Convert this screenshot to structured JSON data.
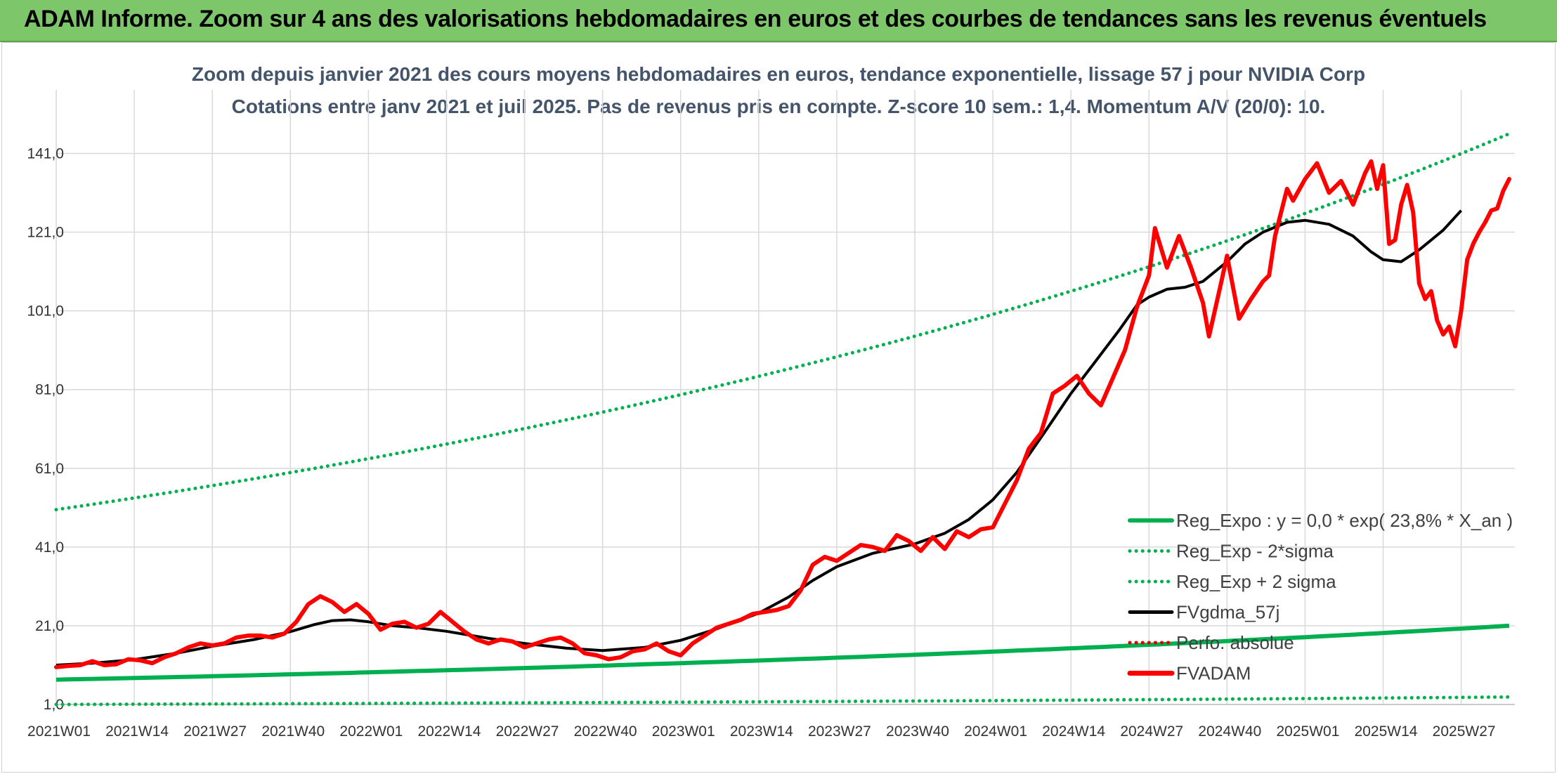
{
  "banner": {
    "title": "ADAM Informe. Zoom sur 4 ans des valorisations hebdomadaires en euros et des courbes de tendances sans les revenus éventuels"
  },
  "chart_data": {
    "type": "line",
    "title": "Zoom depuis janvier 2021 des cours moyens hebdomadaires en euros, tendance exponentielle, lissage 57 j pour NVIDIA Corp",
    "subtitle": "Cotations entre janv 2021 et juil 2025. Pas de revenus pris en compte. Z-score 10 sem.: 1,4. Momentum A/V (20/0): 10.",
    "ylim": [
      1,
      155
    ],
    "y_ticks": [
      "1,0",
      "21,0",
      "41,0",
      "61,0",
      "81,0",
      "101,0",
      "121,0",
      "141,0"
    ],
    "y_tick_values": [
      1,
      21,
      41,
      61,
      81,
      101,
      121,
      141
    ],
    "x_ticks": [
      "2021W01",
      "2021W14",
      "2021W27",
      "2021W40",
      "2022W01",
      "2022W14",
      "2022W27",
      "2022W40",
      "2023W01",
      "2023W14",
      "2023W27",
      "2023W40",
      "2024W01",
      "2024W14",
      "2024W27",
      "2024W40",
      "2025W01",
      "2025W14",
      "2025W27"
    ],
    "x_tick_weeks": [
      0,
      13,
      26,
      39,
      52,
      65,
      78,
      91,
      104,
      117,
      130,
      143,
      156,
      169,
      182,
      195,
      208,
      221,
      234
    ],
    "grid": true,
    "legend_position": "bottom-right",
    "colors": {
      "reg_expo": "#00b050",
      "reg_bands": "#00b050",
      "fvgdma": "#000000",
      "perfo": "#e00000",
      "fvadam": "#ff0000"
    },
    "series": [
      {
        "name": "Reg_Expo : y = 0,0 * exp( 23,8% *  X_an )",
        "style": "solid-green"
      },
      {
        "name": "Reg_Exp - 2*sigma",
        "style": "dotted-green"
      },
      {
        "name": "Reg_Exp + 2 sigma",
        "style": "dotted-green"
      },
      {
        "name": "FVgdma_57j",
        "style": "solid-black"
      },
      {
        "name": "Perfo. absolue",
        "style": "dotted-red"
      },
      {
        "name": "FVADAM",
        "style": "solid-red"
      }
    ],
    "trend_lines": {
      "reg_expo": {
        "start": 7.3,
        "end": 21.0
      },
      "reg_plus_2sigma": {
        "start": 50.5,
        "end": 146.0
      },
      "reg_minus_2sigma": {
        "start": 1.0,
        "end": 2.9
      }
    },
    "fvgdma_57j_points": [
      [
        0,
        11.0
      ],
      [
        6,
        11.5
      ],
      [
        13,
        12.4
      ],
      [
        20,
        14.0
      ],
      [
        26,
        15.8
      ],
      [
        33,
        17.5
      ],
      [
        39,
        19.5
      ],
      [
        43,
        21.3
      ],
      [
        46,
        22.3
      ],
      [
        49,
        22.5
      ],
      [
        52,
        22.0
      ],
      [
        56,
        21.0
      ],
      [
        60,
        20.5
      ],
      [
        65,
        19.6
      ],
      [
        72,
        17.8
      ],
      [
        78,
        16.5
      ],
      [
        85,
        15.3
      ],
      [
        91,
        14.7
      ],
      [
        98,
        15.5
      ],
      [
        104,
        17.3
      ],
      [
        110,
        20.2
      ],
      [
        117,
        24.2
      ],
      [
        122,
        28.3
      ],
      [
        126,
        32.5
      ],
      [
        130,
        36.0
      ],
      [
        136,
        39.4
      ],
      [
        143,
        41.8
      ],
      [
        148,
        44.5
      ],
      [
        152,
        48.0
      ],
      [
        156,
        53.0
      ],
      [
        160,
        60.0
      ],
      [
        165,
        71.0
      ],
      [
        169,
        80.0
      ],
      [
        173,
        88.0
      ],
      [
        177,
        96.0
      ],
      [
        180,
        102.5
      ],
      [
        182,
        104.5
      ],
      [
        185,
        106.5
      ],
      [
        188,
        107.0
      ],
      [
        191,
        108.5
      ],
      [
        195,
        113.5
      ],
      [
        198,
        118.0
      ],
      [
        201,
        121.0
      ],
      [
        205,
        123.5
      ],
      [
        208,
        124.0
      ],
      [
        212,
        123.0
      ],
      [
        216,
        120.0
      ],
      [
        219,
        116.0
      ],
      [
        221,
        114.0
      ],
      [
        224,
        113.5
      ],
      [
        227,
        116.5
      ],
      [
        231,
        121.5
      ],
      [
        234,
        126.5
      ]
    ],
    "fvadam_points": [
      [
        0,
        10.5
      ],
      [
        2,
        10.8
      ],
      [
        4,
        11.0
      ],
      [
        6,
        12.0
      ],
      [
        8,
        11.0
      ],
      [
        10,
        11.2
      ],
      [
        12,
        12.5
      ],
      [
        14,
        12.2
      ],
      [
        16,
        11.5
      ],
      [
        18,
        13.0
      ],
      [
        20,
        14.0
      ],
      [
        22,
        15.5
      ],
      [
        24,
        16.5
      ],
      [
        26,
        16.0
      ],
      [
        28,
        16.5
      ],
      [
        30,
        18.0
      ],
      [
        32,
        18.5
      ],
      [
        34,
        18.5
      ],
      [
        36,
        18.0
      ],
      [
        38,
        19.0
      ],
      [
        40,
        22.0
      ],
      [
        42,
        26.5
      ],
      [
        44,
        28.5
      ],
      [
        46,
        27.0
      ],
      [
        48,
        24.5
      ],
      [
        50,
        26.5
      ],
      [
        52,
        24.0
      ],
      [
        54,
        20.0
      ],
      [
        56,
        21.5
      ],
      [
        58,
        22.0
      ],
      [
        60,
        20.5
      ],
      [
        62,
        21.5
      ],
      [
        64,
        24.5
      ],
      [
        66,
        22.0
      ],
      [
        68,
        19.5
      ],
      [
        70,
        17.5
      ],
      [
        72,
        16.5
      ],
      [
        74,
        17.5
      ],
      [
        76,
        17.0
      ],
      [
        78,
        15.5
      ],
      [
        80,
        16.5
      ],
      [
        82,
        17.5
      ],
      [
        84,
        18.0
      ],
      [
        86,
        16.5
      ],
      [
        88,
        14.0
      ],
      [
        90,
        13.5
      ],
      [
        92,
        12.5
      ],
      [
        94,
        13.0
      ],
      [
        96,
        14.5
      ],
      [
        98,
        15.0
      ],
      [
        100,
        16.5
      ],
      [
        102,
        14.5
      ],
      [
        104,
        13.5
      ],
      [
        106,
        16.5
      ],
      [
        108,
        18.5
      ],
      [
        110,
        20.5
      ],
      [
        112,
        21.5
      ],
      [
        114,
        22.5
      ],
      [
        116,
        24.0
      ],
      [
        118,
        24.5
      ],
      [
        120,
        25.0
      ],
      [
        122,
        26.0
      ],
      [
        124,
        30.0
      ],
      [
        126,
        36.5
      ],
      [
        128,
        38.5
      ],
      [
        130,
        37.5
      ],
      [
        132,
        39.5
      ],
      [
        134,
        41.5
      ],
      [
        136,
        41.0
      ],
      [
        138,
        40.0
      ],
      [
        140,
        44.0
      ],
      [
        142,
        42.5
      ],
      [
        144,
        40.0
      ],
      [
        146,
        43.5
      ],
      [
        148,
        40.5
      ],
      [
        150,
        45.0
      ],
      [
        152,
        43.5
      ],
      [
        154,
        45.5
      ],
      [
        156,
        46.0
      ],
      [
        158,
        52.0
      ],
      [
        160,
        58.0
      ],
      [
        162,
        66.0
      ],
      [
        164,
        70.0
      ],
      [
        166,
        80.0
      ],
      [
        168,
        82.0
      ],
      [
        170,
        84.5
      ],
      [
        172,
        80.0
      ],
      [
        174,
        77.0
      ],
      [
        176,
        84.0
      ],
      [
        178,
        91.0
      ],
      [
        180,
        102.0
      ],
      [
        182,
        110.0
      ],
      [
        183,
        122.0
      ],
      [
        185,
        112.0
      ],
      [
        187,
        120.0
      ],
      [
        189,
        112.0
      ],
      [
        191,
        103.0
      ],
      [
        192,
        94.5
      ],
      [
        194,
        108.0
      ],
      [
        195,
        115.0
      ],
      [
        197,
        99.0
      ],
      [
        199,
        104.0
      ],
      [
        201,
        108.5
      ],
      [
        202,
        110.0
      ],
      [
        203,
        120.0
      ],
      [
        205,
        132.0
      ],
      [
        206,
        129.0
      ],
      [
        208,
        134.5
      ],
      [
        210,
        138.5
      ],
      [
        212,
        131.0
      ],
      [
        214,
        134.0
      ],
      [
        216,
        128.0
      ],
      [
        218,
        136.0
      ],
      [
        219,
        139.0
      ],
      [
        220,
        132.0
      ],
      [
        221,
        138.0
      ],
      [
        222,
        118.0
      ],
      [
        223,
        119.0
      ],
      [
        224,
        128.0
      ],
      [
        225,
        133.0
      ],
      [
        226,
        126.0
      ],
      [
        227,
        108.0
      ],
      [
        228,
        104.0
      ],
      [
        229,
        106.0
      ],
      [
        230,
        98.5
      ],
      [
        231,
        95.0
      ],
      [
        232,
        97.0
      ],
      [
        233,
        92.0
      ],
      [
        234,
        101.0
      ],
      [
        235,
        114.0
      ],
      [
        236,
        118.0
      ],
      [
        237,
        121.0
      ],
      [
        238,
        123.5
      ],
      [
        239,
        126.5
      ],
      [
        240,
        127.0
      ],
      [
        241,
        131.5
      ],
      [
        242,
        134.5
      ]
    ]
  }
}
